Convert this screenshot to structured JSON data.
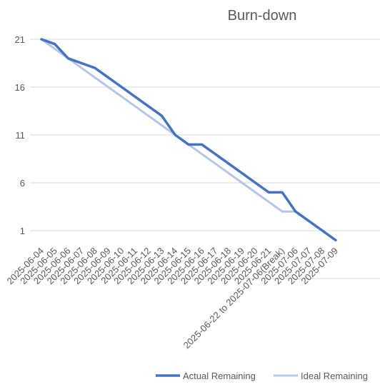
{
  "chart_data": {
    "type": "line",
    "title": "Burn-down",
    "xlabel": "",
    "ylabel": "",
    "categories": [
      "2025-06-04",
      "2025-06-05",
      "2025-06-06",
      "2025-06-07",
      "2025-06-08",
      "2025-06-09",
      "2025-06-10",
      "2025-06-11",
      "2025-06-12",
      "2025-06-13",
      "2025-06-14",
      "2025-06-15",
      "2025-06-16",
      "2025-06-17",
      "2025-06-18",
      "2025-06-19",
      "2025-06-20",
      "2025-06-21",
      "2025-06-22 to 2025-07-06(Break)",
      "2025-07-06",
      "2025-07-07",
      "2025-07-08",
      "2025-07-09"
    ],
    "series": [
      {
        "name": "Actual Remaining",
        "color": "#4472C4",
        "values": [
          21,
          20.5,
          19,
          18.5,
          18,
          17,
          16,
          15,
          14,
          13,
          11,
          10,
          10,
          9,
          8,
          7,
          6,
          5,
          5,
          3,
          2,
          1,
          0
        ]
      },
      {
        "name": "Ideal Remaining",
        "color": "#B4C7E7",
        "values": [
          21,
          20,
          19,
          18,
          17,
          16,
          15,
          14,
          13,
          12,
          11,
          10,
          9,
          8,
          7,
          6,
          5,
          4,
          3,
          3,
          2,
          1,
          0
        ]
      }
    ],
    "y_ticks": [
      21,
      16,
      11,
      6,
      1
    ],
    "ylim": [
      -4,
      24
    ],
    "grid": true,
    "legend_position": "bottom-right"
  }
}
